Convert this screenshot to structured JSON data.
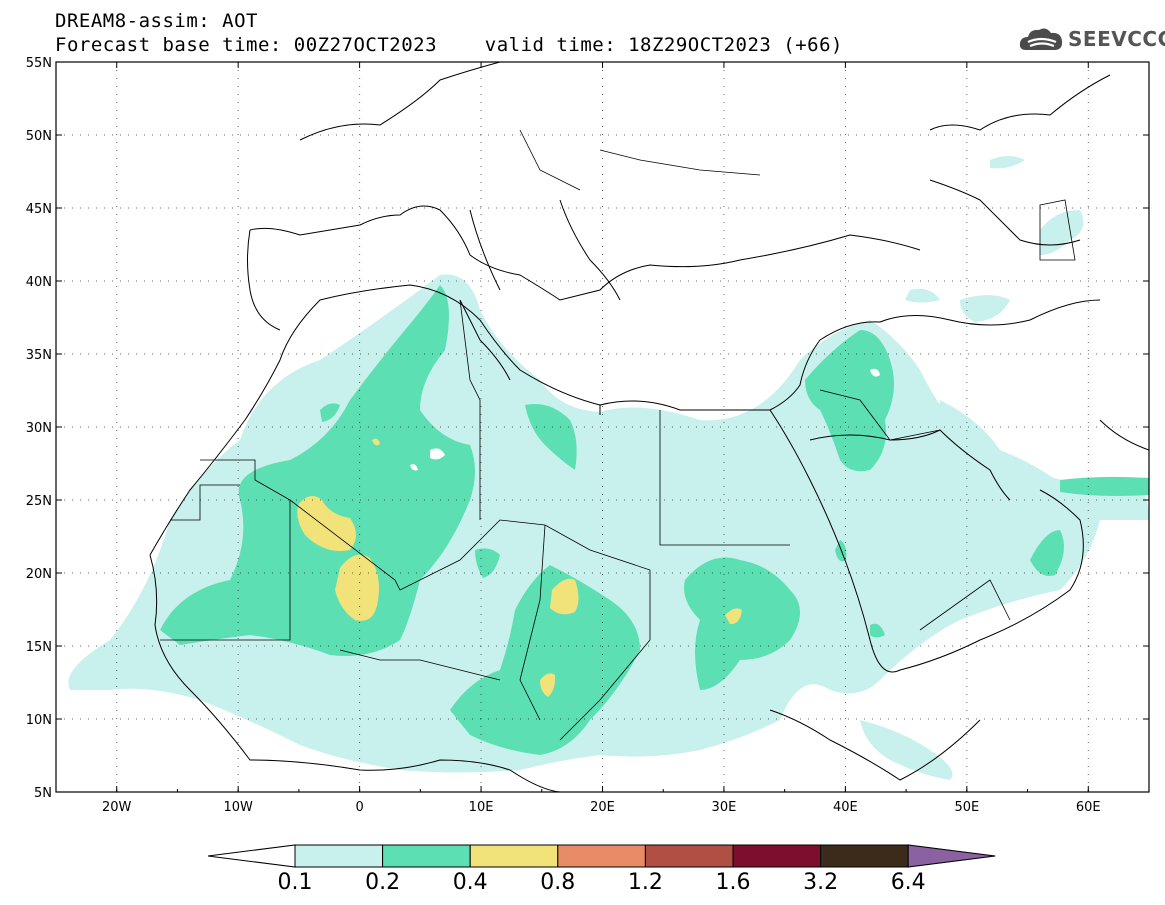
{
  "header": {
    "title_line1": "DREAM8-assim: AOT",
    "title_line2": "Forecast base time: 00Z27OCT2023    valid time: 18Z29OCT2023 (+66)"
  },
  "logo": {
    "text": "SEEVCCC",
    "icon": "cloud-icon"
  },
  "map": {
    "lat_labels": [
      "55N",
      "50N",
      "45N",
      "40N",
      "35N",
      "30N",
      "25N",
      "20N",
      "15N",
      "10N",
      "5N"
    ],
    "lon_labels": [
      "20W",
      "10W",
      "0",
      "10E",
      "20E",
      "30E",
      "40E",
      "50E",
      "60E"
    ],
    "lat_range": [
      5,
      55
    ],
    "lon_range": [
      -25,
      65
    ],
    "grid": "dotted"
  },
  "colorbar": {
    "levels": [
      "0.1",
      "0.2",
      "0.4",
      "0.8",
      "1.2",
      "1.6",
      "3.2",
      "6.4"
    ],
    "colors": [
      "#c8f0ec",
      "#5ddfb4",
      "#f2e27a",
      "#e88c68",
      "#b04f44",
      "#7e0e2e",
      "#3c2a1a",
      "#8a62a2"
    ],
    "below_color": "#ffffff"
  }
}
